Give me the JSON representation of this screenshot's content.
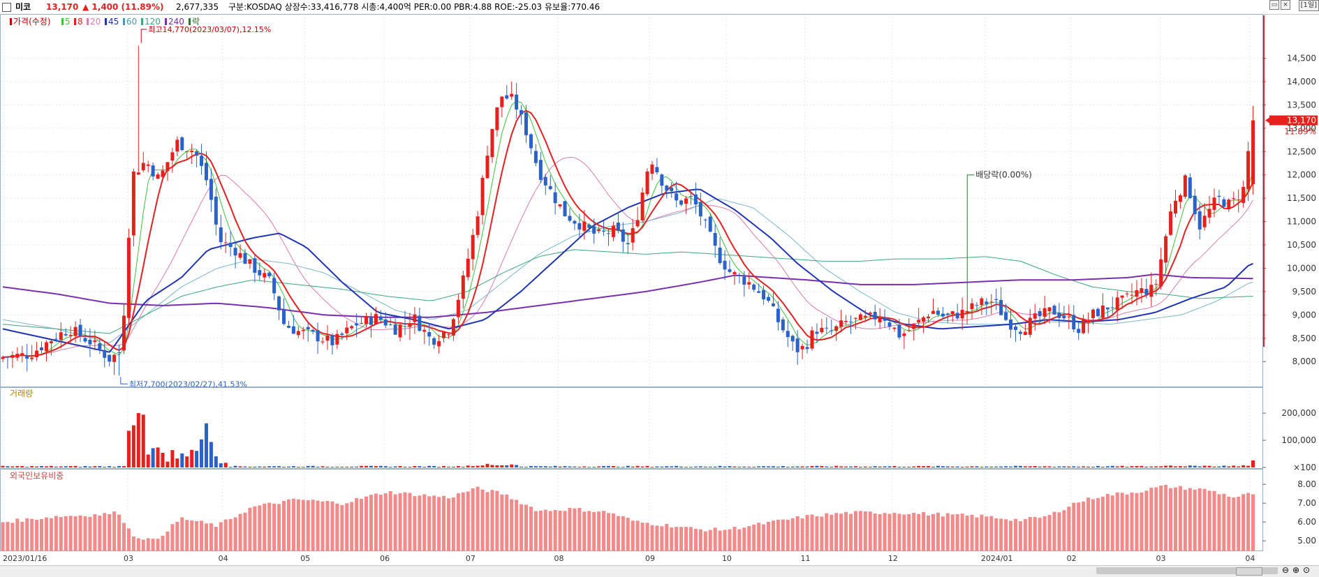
{
  "header": {
    "stock_name": "미코",
    "price": "13,170",
    "change": "▲ 1,400 (11.89%)",
    "volume": "2,677,335",
    "info": "구분:KOSDAQ 상장수:33,416,778 시총:4,400억 PER:0.00 PBR:4.88 ROE:-25.03 유보율:770.46",
    "period": "[1일]"
  },
  "colors": {
    "up": "#e8201c",
    "down": "#2a62c9",
    "ma5": "#3cc43c",
    "ma8": "#e81f1f",
    "ma20": "#e07ab0",
    "ma45": "#1f33b8",
    "ma60": "#7ab8cc",
    "ma120": "#3aa87a",
    "ma240": "#7a2fb0",
    "foreign_bar": "#f28a8a"
  },
  "legend": [
    {
      "text": "가격(수정)",
      "color": "#c80000"
    },
    {
      "text": "5",
      "color": "#3cc43c"
    },
    {
      "text": "8",
      "color": "#e81f1f"
    },
    {
      "text": "20",
      "color": "#e07ab0"
    },
    {
      "text": "45",
      "color": "#1f33b8"
    },
    {
      "text": "60",
      "color": "#4a9ab8"
    },
    {
      "text": "120",
      "color": "#3aa87a"
    },
    {
      "text": "240",
      "color": "#7a2fb0"
    },
    {
      "text": "락",
      "color": "#2a7a2a"
    }
  ],
  "volume_label": "거래량",
  "foreign_label": "외국인보유비중",
  "chart_data": {
    "type": "candlestick",
    "price_axis": {
      "ticks": [
        8000,
        8500,
        9000,
        9500,
        10000,
        10500,
        11000,
        11500,
        12000,
        12500,
        13000,
        13500,
        14000,
        14500
      ],
      "tick_labels": [
        "8,000",
        "8,500",
        "9,000",
        "9,500",
        "10,000",
        "10,500",
        "11,000",
        "11,500",
        "12,000",
        "12,500",
        "13,000",
        "13,500",
        "14,000",
        "14,500"
      ]
    },
    "volume_axis": {
      "ticks": [
        100,
        100000,
        200000
      ],
      "tick_labels": [
        "×100",
        "100,000",
        "200,000"
      ]
    },
    "foreign_axis": {
      "ticks": [
        5,
        6,
        7,
        8
      ],
      "tick_labels": [
        "5.00",
        "6.00",
        "7.00",
        "8.00"
      ]
    },
    "x_labels": [
      "2023/01/16",
      "03",
      "04",
      "05",
      "06",
      "07",
      "08",
      "09",
      "10",
      "11",
      "12",
      "2024/01",
      "02",
      "03",
      "04"
    ],
    "x_label_months": [
      0,
      1.4,
      2.46,
      3.38,
      4.27,
      5.23,
      6.22,
      7.24,
      8.1,
      8.98,
      9.96,
      11.0,
      11.96,
      12.96,
      13.96
    ],
    "current_price_label": "13,170",
    "current_pct_label": "11.89%",
    "last_close": 13170,
    "annotations": {
      "high": {
        "text": "최고14,770(2023/03/07),12.15%",
        "price": 14770,
        "month": 1.55
      },
      "low": {
        "text": "최저7,700(2023/02/27),41.53%",
        "price": 7700,
        "month": 1.32
      },
      "dividend": {
        "text": "배당락(0.00%)",
        "price": 9000,
        "month": 10.8
      }
    },
    "anchors": [
      [
        0,
        8100
      ],
      [
        0.3,
        8150
      ],
      [
        0.6,
        8550
      ],
      [
        0.75,
        8700
      ],
      [
        1.0,
        8400
      ],
      [
        1.2,
        8050
      ],
      [
        1.33,
        8250
      ],
      [
        1.45,
        12000
      ],
      [
        1.6,
        12300
      ],
      [
        1.75,
        11900
      ],
      [
        1.95,
        12700
      ],
      [
        2.15,
        12500
      ],
      [
        2.3,
        11800
      ],
      [
        2.42,
        10600
      ],
      [
        2.6,
        10400
      ],
      [
        2.75,
        10100
      ],
      [
        3.0,
        9700
      ],
      [
        3.15,
        8800
      ],
      [
        3.3,
        8650
      ],
      [
        3.5,
        8550
      ],
      [
        3.7,
        8400
      ],
      [
        3.95,
        8800
      ],
      [
        4.2,
        8950
      ],
      [
        4.4,
        8700
      ],
      [
        4.6,
        8950
      ],
      [
        4.8,
        8450
      ],
      [
        5.0,
        8700
      ],
      [
        5.15,
        9700
      ],
      [
        5.3,
        11000
      ],
      [
        5.45,
        12800
      ],
      [
        5.58,
        13700
      ],
      [
        5.72,
        13600
      ],
      [
        5.85,
        13000
      ],
      [
        6.0,
        12100
      ],
      [
        6.15,
        11600
      ],
      [
        6.3,
        11150
      ],
      [
        6.5,
        10900
      ],
      [
        6.65,
        10700
      ],
      [
        6.85,
        10800
      ],
      [
        7.0,
        10500
      ],
      [
        7.08,
        10900
      ],
      [
        7.25,
        12400
      ],
      [
        7.4,
        11800
      ],
      [
        7.55,
        11400
      ],
      [
        7.72,
        11500
      ],
      [
        7.85,
        11000
      ],
      [
        8.0,
        10300
      ],
      [
        8.15,
        9900
      ],
      [
        8.35,
        9700
      ],
      [
        8.55,
        9350
      ],
      [
        8.7,
        8800
      ],
      [
        8.88,
        8250
      ],
      [
        8.98,
        8300
      ],
      [
        9.1,
        8700
      ],
      [
        9.25,
        8600
      ],
      [
        9.45,
        8850
      ],
      [
        9.65,
        8900
      ],
      [
        9.85,
        9000
      ],
      [
        10.05,
        8550
      ],
      [
        10.2,
        8750
      ],
      [
        10.4,
        9100
      ],
      [
        10.55,
        8950
      ],
      [
        10.75,
        9050
      ],
      [
        10.95,
        9250
      ],
      [
        11.1,
        9300
      ],
      [
        11.25,
        8850
      ],
      [
        11.4,
        8700
      ],
      [
        11.55,
        8900
      ],
      [
        11.75,
        9100
      ],
      [
        11.9,
        8950
      ],
      [
        12.05,
        8700
      ],
      [
        12.2,
        9000
      ],
      [
        12.4,
        9200
      ],
      [
        12.55,
        9300
      ],
      [
        12.7,
        9500
      ],
      [
        12.9,
        9550
      ],
      [
        12.97,
        10200
      ],
      [
        13.1,
        11400
      ],
      [
        13.25,
        11900
      ],
      [
        13.4,
        10900
      ],
      [
        13.6,
        11500
      ],
      [
        13.75,
        11350
      ],
      [
        13.92,
        11770
      ],
      [
        13.97,
        13170
      ]
    ],
    "ma_levels": {
      "ma45": [
        [
          0,
          8700
        ],
        [
          0.6,
          8450
        ],
        [
          1.2,
          8200
        ],
        [
          1.6,
          9300
        ],
        [
          2.0,
          9800
        ],
        [
          2.3,
          10400
        ],
        [
          2.8,
          10650
        ],
        [
          3.1,
          10750
        ],
        [
          3.4,
          10450
        ],
        [
          3.8,
          9700
        ],
        [
          4.2,
          9050
        ],
        [
          4.6,
          8900
        ],
        [
          5.0,
          8700
        ],
        [
          5.4,
          8900
        ],
        [
          5.8,
          9500
        ],
        [
          6.2,
          10200
        ],
        [
          6.6,
          10900
        ],
        [
          7.0,
          11300
        ],
        [
          7.4,
          11600
        ],
        [
          7.8,
          11700
        ],
        [
          8.2,
          11250
        ],
        [
          8.6,
          10650
        ],
        [
          8.9,
          10100
        ],
        [
          9.3,
          9500
        ],
        [
          9.7,
          9000
        ],
        [
          10.1,
          8800
        ],
        [
          10.5,
          8700
        ],
        [
          10.9,
          8750
        ],
        [
          11.3,
          8800
        ],
        [
          11.7,
          8900
        ],
        [
          12.1,
          8850
        ],
        [
          12.5,
          8900
        ],
        [
          12.9,
          9050
        ],
        [
          13.3,
          9350
        ],
        [
          13.7,
          9600
        ],
        [
          13.97,
          10100
        ]
      ],
      "ma240": [
        [
          0,
          9600
        ],
        [
          0.6,
          9450
        ],
        [
          1.2,
          9250
        ],
        [
          1.8,
          9200
        ],
        [
          2.4,
          9250
        ],
        [
          3.0,
          9150
        ],
        [
          3.6,
          9000
        ],
        [
          4.2,
          8950
        ],
        [
          4.8,
          8950
        ],
        [
          5.4,
          9050
        ],
        [
          6.0,
          9200
        ],
        [
          6.6,
          9350
        ],
        [
          7.2,
          9500
        ],
        [
          7.8,
          9700
        ],
        [
          8.2,
          9850
        ],
        [
          8.6,
          9800
        ],
        [
          9.0,
          9750
        ],
        [
          9.6,
          9650
        ],
        [
          10.2,
          9650
        ],
        [
          10.8,
          9700
        ],
        [
          11.4,
          9750
        ],
        [
          12.0,
          9750
        ],
        [
          12.6,
          9800
        ],
        [
          12.9,
          9870
        ],
        [
          13.3,
          9800
        ],
        [
          13.97,
          9780
        ]
      ],
      "ma120": [
        [
          0,
          8800
        ],
        [
          0.6,
          8700
        ],
        [
          1.2,
          8600
        ],
        [
          1.6,
          9000
        ],
        [
          2.0,
          9400
        ],
        [
          2.4,
          9600
        ],
        [
          2.8,
          9750
        ],
        [
          3.3,
          9650
        ],
        [
          3.8,
          9550
        ],
        [
          4.3,
          9400
        ],
        [
          4.8,
          9300
        ],
        [
          5.2,
          9500
        ],
        [
          5.6,
          9900
        ],
        [
          6.0,
          10250
        ],
        [
          6.4,
          10400
        ],
        [
          6.8,
          10350
        ],
        [
          7.2,
          10300
        ],
        [
          7.6,
          10350
        ],
        [
          8.0,
          10300
        ],
        [
          8.4,
          10250
        ],
        [
          8.8,
          10200
        ],
        [
          9.2,
          10150
        ],
        [
          9.6,
          10150
        ],
        [
          10.0,
          10200
        ],
        [
          10.5,
          10200
        ],
        [
          11.0,
          10250
        ],
        [
          11.4,
          10150
        ],
        [
          11.8,
          9850
        ],
        [
          12.2,
          9600
        ],
        [
          12.6,
          9500
        ],
        [
          13.0,
          9450
        ],
        [
          13.4,
          9350
        ],
        [
          13.97,
          9400
        ]
      ],
      "ma60": [
        [
          0,
          8900
        ],
        [
          0.6,
          8700
        ],
        [
          1.2,
          8400
        ],
        [
          1.6,
          9000
        ],
        [
          2.0,
          9600
        ],
        [
          2.4,
          10000
        ],
        [
          2.8,
          10200
        ],
        [
          3.2,
          10100
        ],
        [
          3.6,
          9900
        ],
        [
          4.0,
          9500
        ],
        [
          4.4,
          9100
        ],
        [
          4.8,
          8900
        ],
        [
          5.2,
          9100
        ],
        [
          5.6,
          9700
        ],
        [
          6.0,
          10300
        ],
        [
          6.4,
          10700
        ],
        [
          6.8,
          10900
        ],
        [
          7.2,
          11000
        ],
        [
          7.6,
          11200
        ],
        [
          8.0,
          11500
        ],
        [
          8.4,
          11300
        ],
        [
          8.8,
          10700
        ],
        [
          9.2,
          10000
        ],
        [
          9.6,
          9500
        ],
        [
          10.0,
          9050
        ],
        [
          10.4,
          8850
        ],
        [
          10.8,
          8800
        ],
        [
          11.2,
          8800
        ],
        [
          11.6,
          8850
        ],
        [
          12.0,
          8850
        ],
        [
          12.4,
          8800
        ],
        [
          12.8,
          8900
        ],
        [
          13.2,
          9000
        ],
        [
          13.6,
          9300
        ],
        [
          13.97,
          9700
        ]
      ]
    }
  }
}
